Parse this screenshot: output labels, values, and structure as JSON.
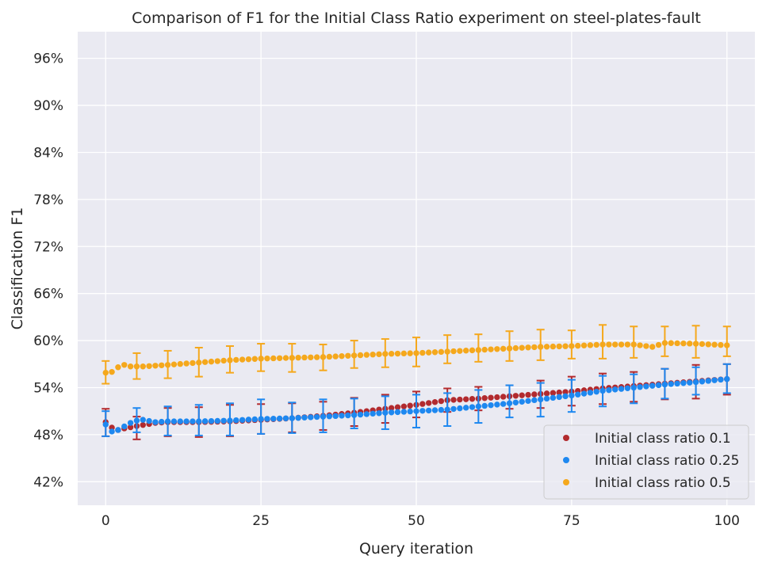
{
  "chart_data": {
    "type": "scatter",
    "title": "Comparison of F1 for the Initial Class Ratio experiment on steel-plates-fault",
    "xlabel": "Query iteration",
    "ylabel": "Classification F1",
    "xlim": [
      -4.5,
      104.5
    ],
    "ylim": [
      0.39,
      0.994
    ],
    "xticks": [
      0,
      25,
      50,
      75,
      100
    ],
    "xtick_labels": [
      "0",
      "25",
      "50",
      "75",
      "100"
    ],
    "yticks": [
      0.42,
      0.48,
      0.54,
      0.6,
      0.66,
      0.72,
      0.78,
      0.84,
      0.9,
      0.96
    ],
    "ytick_labels": [
      "42%",
      "48%",
      "54%",
      "60%",
      "66%",
      "72%",
      "78%",
      "84%",
      "90%",
      "96%"
    ],
    "grid": true,
    "legend_position": "bottom-right",
    "error_bar_every": 5,
    "series": [
      {
        "name": "Initial class ratio 0.1",
        "color": "#b22a2e",
        "anchors_x": [
          0,
          1,
          2,
          3,
          5,
          8,
          10,
          15,
          20,
          25,
          30,
          35,
          40,
          45,
          50,
          55,
          60,
          65,
          70,
          75,
          80,
          85,
          90,
          95,
          100
        ],
        "anchors_y": [
          0.496,
          0.489,
          0.486,
          0.488,
          0.491,
          0.495,
          0.496,
          0.496,
          0.497,
          0.499,
          0.501,
          0.504,
          0.508,
          0.513,
          0.518,
          0.524,
          0.526,
          0.529,
          0.532,
          0.535,
          0.539,
          0.542,
          0.545,
          0.548,
          0.551
        ],
        "err_x": [
          0,
          5,
          10,
          15,
          20,
          25,
          30,
          35,
          40,
          45,
          50,
          55,
          60,
          65,
          70,
          75,
          80,
          85,
          90,
          95,
          100
        ],
        "err_lo": [
          0.478,
          0.474,
          0.478,
          0.477,
          0.478,
          0.481,
          0.483,
          0.486,
          0.491,
          0.495,
          0.502,
          0.509,
          0.511,
          0.513,
          0.514,
          0.517,
          0.519,
          0.522,
          0.525,
          0.526,
          0.531
        ],
        "err_hi": [
          0.513,
          0.503,
          0.514,
          0.515,
          0.518,
          0.519,
          0.52,
          0.522,
          0.527,
          0.531,
          0.535,
          0.539,
          0.541,
          0.543,
          0.549,
          0.554,
          0.558,
          0.56,
          0.564,
          0.569,
          0.57
        ]
      },
      {
        "name": "Initial class ratio 0.25",
        "color": "#1e88f0",
        "anchors_x": [
          0,
          1,
          2,
          4,
          5,
          6,
          8,
          10,
          15,
          20,
          25,
          30,
          35,
          40,
          45,
          50,
          55,
          60,
          65,
          70,
          75,
          80,
          85,
          90,
          95,
          100
        ],
        "anchors_y": [
          0.493,
          0.484,
          0.486,
          0.495,
          0.498,
          0.499,
          0.496,
          0.497,
          0.497,
          0.498,
          0.5,
          0.501,
          0.503,
          0.505,
          0.508,
          0.51,
          0.512,
          0.516,
          0.52,
          0.525,
          0.53,
          0.536,
          0.54,
          0.544,
          0.547,
          0.551
        ],
        "err_x": [
          0,
          5,
          10,
          15,
          20,
          25,
          30,
          35,
          40,
          45,
          50,
          55,
          60,
          65,
          70,
          75,
          80,
          85,
          90,
          95,
          100
        ],
        "err_lo": [
          0.478,
          0.483,
          0.479,
          0.479,
          0.479,
          0.481,
          0.482,
          0.483,
          0.488,
          0.487,
          0.489,
          0.491,
          0.495,
          0.502,
          0.503,
          0.509,
          0.516,
          0.52,
          0.526,
          0.531,
          0.533
        ],
        "err_hi": [
          0.51,
          0.514,
          0.516,
          0.518,
          0.52,
          0.525,
          0.521,
          0.525,
          0.526,
          0.529,
          0.531,
          0.533,
          0.537,
          0.543,
          0.546,
          0.55,
          0.555,
          0.557,
          0.564,
          0.566,
          0.57
        ]
      },
      {
        "name": "Initial class ratio 0.5",
        "color": "#f5a81c",
        "anchors_x": [
          0,
          1,
          2,
          3,
          4,
          6,
          10,
          15,
          20,
          25,
          30,
          35,
          40,
          45,
          50,
          55,
          60,
          65,
          70,
          75,
          80,
          85,
          88,
          90,
          95,
          100
        ],
        "anchors_y": [
          0.559,
          0.56,
          0.566,
          0.569,
          0.567,
          0.567,
          0.569,
          0.572,
          0.575,
          0.577,
          0.578,
          0.579,
          0.581,
          0.583,
          0.584,
          0.586,
          0.588,
          0.59,
          0.592,
          0.593,
          0.595,
          0.595,
          0.592,
          0.597,
          0.596,
          0.594
        ],
        "err_x": [
          0,
          5,
          10,
          15,
          20,
          25,
          30,
          35,
          40,
          45,
          50,
          55,
          60,
          65,
          70,
          75,
          80,
          85,
          90,
          95,
          100
        ],
        "err_lo": [
          0.545,
          0.551,
          0.552,
          0.554,
          0.559,
          0.561,
          0.56,
          0.562,
          0.565,
          0.566,
          0.567,
          0.571,
          0.573,
          0.574,
          0.575,
          0.577,
          0.577,
          0.578,
          0.58,
          0.578,
          0.58
        ],
        "err_hi": [
          0.574,
          0.584,
          0.587,
          0.591,
          0.593,
          0.596,
          0.596,
          0.595,
          0.6,
          0.602,
          0.604,
          0.607,
          0.608,
          0.612,
          0.614,
          0.613,
          0.62,
          0.618,
          0.618,
          0.619,
          0.618
        ]
      }
    ]
  }
}
